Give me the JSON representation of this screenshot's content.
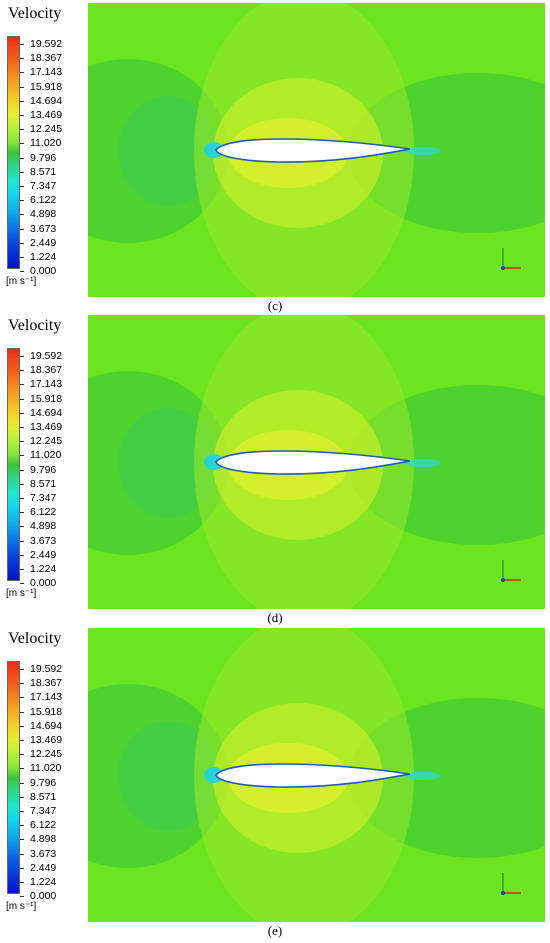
{
  "panels": [
    {
      "caption": "(c)"
    },
    {
      "caption": "(d)"
    },
    {
      "caption": "(e)"
    }
  ],
  "legend": {
    "title": "Velocity",
    "unit": "[m s⁻¹]",
    "labels": [
      "19.592",
      "18.367",
      "17.143",
      "15.918",
      "14.694",
      "13.469",
      "12.245",
      "11.020",
      "9.796",
      "8.571",
      "7.347",
      "6.122",
      "4.898",
      "3.673",
      "2.449",
      "1.224",
      "0.000"
    ]
  },
  "triad": {
    "x_label": "x",
    "y_label": "y",
    "z_label": "z"
  },
  "colors": {
    "freestream": "#6ae51f",
    "wake": "#48cf31",
    "stagnation": "#34c86d",
    "accel": "#c4ee2b",
    "accel_core": "#dbef2b",
    "x_axis": "#e02010",
    "y_axis": "#2e9e2e",
    "z_axis": "#1a3cc8"
  }
}
